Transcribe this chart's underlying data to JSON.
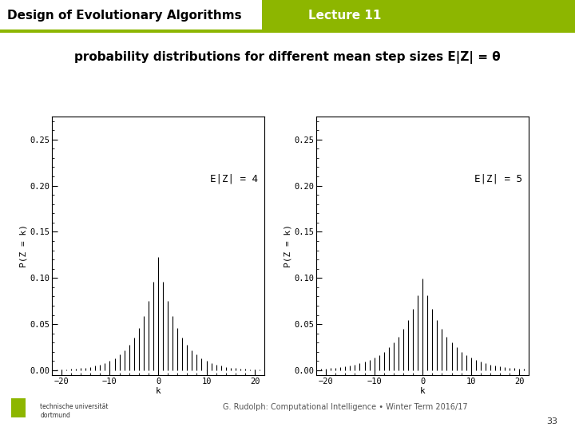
{
  "title": "probability distributions for different mean step sizes E|Z| = θ",
  "header_left": "Design of Evolutionary Algorithms",
  "header_right": "Lecture 11",
  "header_left_color": "#000000",
  "header_right_color": "#ffffff",
  "header_right_bg": "#8db600",
  "header_left_bg": "#ffffff",
  "header_border_color": "#8db600",
  "subplot_left_label": "E|Z| = 4",
  "subplot_right_label": "E|Z| = 5",
  "ylabel": "P(Z = k)",
  "xlabel": "k",
  "xlim": [
    -22,
    22
  ],
  "ylim": [
    -0.005,
    0.275
  ],
  "yticks": [
    0.0,
    0.05,
    0.1,
    0.15,
    0.2,
    0.25
  ],
  "xticks": [
    -20,
    -10,
    0,
    10,
    20
  ],
  "mean1": 4,
  "mean2": 5,
  "footer_text": "G. Rudolph: Computational Intelligence • Winter Term 2016/17",
  "footer_page": "33",
  "bg_color": "#ffffff",
  "plot_bg": "#ffffff",
  "line_color": "#000000",
  "font_family": "monospace"
}
